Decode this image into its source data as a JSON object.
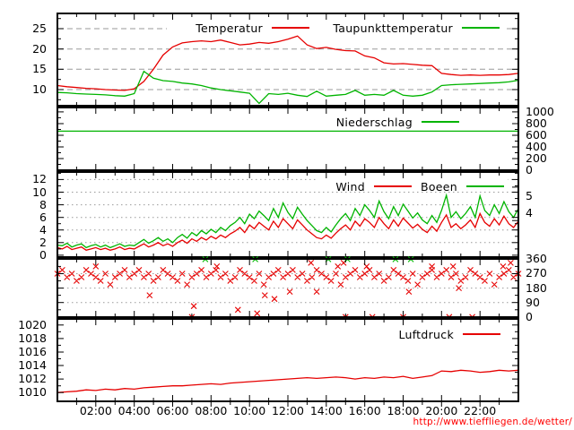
{
  "footer": {
    "url": "http://www.tieffliegen.de/wetter/"
  },
  "colors": {
    "red": "#e60000",
    "green": "#00b400",
    "url_red": "#ff0000",
    "grid": "#9a9a9a",
    "axis": "#000000"
  },
  "x_axis": {
    "labels": [
      "02:00",
      "04:00",
      "06:00",
      "08:00",
      "10:00",
      "12:00",
      "14:00",
      "16:00",
      "18:00",
      "20:00",
      "22:00"
    ],
    "label_hours": [
      2,
      4,
      6,
      8,
      10,
      12,
      14,
      16,
      18,
      20,
      22
    ],
    "range_hours": [
      0,
      24
    ]
  },
  "legends": {
    "temperature": [
      {
        "label": "Temperatur",
        "color": "#e60000"
      },
      {
        "label": "Taupunkttemperatur",
        "color": "#00b400"
      }
    ],
    "precipitation": [
      {
        "label": "Niederschlag",
        "color": "#00b400"
      }
    ],
    "wind": [
      {
        "label": "Wind",
        "color": "#e60000"
      },
      {
        "label": "Boeen",
        "color": "#00b400"
      }
    ],
    "pressure": [
      {
        "label": "Luftdruck",
        "color": "#e60000"
      }
    ]
  },
  "chart_data": [
    {
      "id": "temperature",
      "type": "line",
      "xlim": [
        0,
        24
      ],
      "ylim": [
        6.0,
        28.75
      ],
      "x_start": 0,
      "x_step_hours": 0.5,
      "grid": "dashed",
      "yticks": [
        {
          "side": "left",
          "values": [
            25,
            20,
            15,
            10
          ],
          "labels": [
            "25",
            "20",
            "15",
            "10"
          ]
        }
      ],
      "series": [
        {
          "name": "Temperatur",
          "color": "#e60000",
          "values": [
            11.0,
            10.7,
            10.5,
            10.3,
            10.2,
            10.0,
            9.9,
            9.8,
            10.2,
            12.0,
            15.0,
            18.5,
            20.5,
            21.5,
            21.8,
            22.0,
            21.8,
            22.2,
            21.6,
            21.0,
            21.2,
            21.6,
            21.4,
            21.8,
            22.4,
            23.2,
            21.0,
            20.1,
            20.4,
            19.9,
            19.6,
            19.5,
            18.3,
            17.8,
            16.6,
            16.3,
            16.4,
            16.2,
            16.0,
            15.9,
            14.0,
            13.7,
            13.5,
            13.6,
            13.5,
            13.6,
            13.6,
            13.7,
            14.0
          ]
        },
        {
          "name": "Taupunkttemperatur",
          "color": "#00b400",
          "values": [
            9.3,
            9.2,
            9.0,
            8.9,
            8.8,
            8.7,
            8.5,
            8.4,
            9.0,
            14.5,
            12.8,
            12.2,
            12.0,
            11.6,
            11.4,
            11.0,
            10.4,
            10.0,
            9.7,
            9.4,
            9.1,
            6.6,
            9.0,
            8.8,
            9.1,
            8.6,
            8.3,
            9.6,
            8.4,
            8.6,
            8.8,
            9.8,
            8.6,
            8.8,
            8.6,
            9.8,
            8.6,
            8.4,
            8.6,
            9.4,
            11.0,
            11.2,
            11.3,
            11.4,
            11.5,
            11.6,
            11.7,
            11.9,
            12.3
          ]
        }
      ]
    },
    {
      "id": "precipitation",
      "type": "line",
      "xlim": [
        0,
        24
      ],
      "ylim": [
        0,
        1076
      ],
      "x": [
        0,
        24
      ],
      "yticks": [
        {
          "side": "right",
          "values": [
            1000,
            800,
            600,
            400,
            200,
            0
          ],
          "labels": [
            "1000",
            "800",
            "600",
            "400",
            "200",
            "0"
          ]
        }
      ],
      "series": [
        {
          "name": "Niederschlag",
          "color": "#00b400",
          "values": [
            670,
            670
          ]
        }
      ]
    },
    {
      "id": "wind",
      "type": "line",
      "xlim": [
        0,
        24
      ],
      "ylim": [
        0,
        13.2
      ],
      "x_start": 0,
      "x_step_hours": 0.25,
      "grid": "dotted",
      "yticks": [
        {
          "side": "left",
          "values": [
            12,
            10,
            8,
            6,
            4,
            2,
            0
          ],
          "labels": [
            "12",
            "10",
            "8",
            "6",
            "4",
            "2",
            "0"
          ]
        },
        {
          "side": "right",
          "values": [
            9.35,
            6.7
          ],
          "labels": [
            "5",
            "4"
          ]
        }
      ],
      "series": [
        {
          "name": "Wind",
          "color": "#e60000",
          "values": [
            1.2,
            1.0,
            1.4,
            0.9,
            1.1,
            1.3,
            0.8,
            1.0,
            1.2,
            0.9,
            1.1,
            0.8,
            1.0,
            1.3,
            0.9,
            1.1,
            1.0,
            1.4,
            1.8,
            1.3,
            1.6,
            2.0,
            1.5,
            1.8,
            1.4,
            2.0,
            2.4,
            1.9,
            2.6,
            2.2,
            2.8,
            2.4,
            3.0,
            2.6,
            3.2,
            2.8,
            3.4,
            3.8,
            4.4,
            3.6,
            4.8,
            4.2,
            5.2,
            4.6,
            4.0,
            5.4,
            4.4,
            5.8,
            5.0,
            4.2,
            5.6,
            4.8,
            4.0,
            3.4,
            2.8,
            2.6,
            3.2,
            2.7,
            3.5,
            4.2,
            4.8,
            4.0,
            5.4,
            4.6,
            5.8,
            5.2,
            4.4,
            6.0,
            5.0,
            4.2,
            5.6,
            4.6,
            5.9,
            5.1,
            4.3,
            4.9,
            4.1,
            3.6,
            4.6,
            3.8,
            5.2,
            6.4,
            4.4,
            5.0,
            4.2,
            4.8,
            5.6,
            4.4,
            6.6,
            5.2,
            4.6,
            5.8,
            4.8,
            6.2,
            5.0,
            4.4,
            5.4
          ]
        },
        {
          "name": "Boeen",
          "color": "#00b400",
          "values": [
            1.6,
            1.5,
            1.9,
            1.3,
            1.6,
            1.8,
            1.2,
            1.5,
            1.7,
            1.3,
            1.6,
            1.2,
            1.5,
            1.8,
            1.4,
            1.6,
            1.5,
            2.0,
            2.5,
            1.9,
            2.3,
            2.8,
            2.2,
            2.6,
            2.0,
            2.8,
            3.3,
            2.7,
            3.6,
            3.1,
            3.9,
            3.4,
            4.1,
            3.6,
            4.4,
            3.9,
            4.7,
            5.2,
            6.0,
            5.0,
            6.5,
            5.8,
            7.0,
            6.3,
            5.5,
            7.4,
            6.0,
            8.3,
            6.8,
            5.8,
            7.6,
            6.5,
            5.5,
            4.7,
            3.9,
            3.6,
            4.4,
            3.7,
            4.8,
            5.8,
            6.6,
            5.5,
            7.4,
            6.3,
            8.0,
            7.1,
            6.0,
            8.6,
            6.9,
            5.8,
            7.7,
            6.3,
            8.1,
            7.0,
            5.9,
            6.7,
            5.6,
            5.0,
            6.3,
            5.2,
            7.1,
            9.5,
            6.0,
            6.9,
            5.8,
            6.6,
            7.7,
            6.0,
            9.4,
            7.1,
            6.3,
            8.0,
            6.6,
            8.5,
            6.9,
            6.0,
            7.4
          ]
        }
      ]
    },
    {
      "id": "direction",
      "type": "scatter",
      "marker": "x",
      "marker_color": "#e60000",
      "north_color": "#00b400",
      "xlim": [
        0,
        24
      ],
      "ylim": [
        0,
        360
      ],
      "x_start": 0,
      "x_step_hours": 0.25,
      "grid": "dotted",
      "yticks": [
        {
          "side": "right",
          "values": [
            360,
            270,
            180,
            90,
            0
          ],
          "labels": [
            "360",
            "270",
            "180",
            "90",
            "0"
          ]
        }
      ],
      "values": [
        270,
        292.5,
        247.5,
        270,
        225,
        247.5,
        292.5,
        270,
        247.5,
        225,
        270,
        202.5,
        247.5,
        270,
        292.5,
        247.5,
        270,
        292.5,
        247.5,
        270,
        225,
        247.5,
        292.5,
        270,
        247.5,
        225,
        270,
        202.5,
        247.5,
        270,
        292.5,
        247.5,
        270,
        292.5,
        247.5,
        270,
        225,
        247.5,
        292.5,
        270,
        247.5,
        225,
        270,
        202.5,
        247.5,
        270,
        292.5,
        247.5,
        270,
        292.5,
        247.5,
        270,
        225,
        247.5,
        292.5,
        270,
        247.5,
        225,
        270,
        202.5,
        247.5,
        270,
        292.5,
        247.5,
        270,
        292.5,
        247.5,
        270,
        225,
        247.5,
        292.5,
        270,
        247.5,
        225,
        270,
        202.5,
        247.5,
        270,
        292.5,
        247.5,
        270,
        292.5,
        247.5,
        270,
        225,
        247.5,
        292.5,
        270,
        247.5,
        225,
        270,
        202.5,
        247.5,
        270,
        292.5,
        247.5,
        270
      ],
      "outliers": [
        [
          2.0,
          315
        ],
        [
          4.8,
          135
        ],
        [
          7.1,
          67.5
        ],
        [
          8.3,
          315
        ],
        [
          9.4,
          45
        ],
        [
          10.4,
          22.5
        ],
        [
          10.8,
          135
        ],
        [
          11.3,
          112.5
        ],
        [
          12.1,
          157.5
        ],
        [
          13.2,
          337.5
        ],
        [
          13.5,
          157.5
        ],
        [
          14.6,
          315
        ],
        [
          14.9,
          337.5
        ],
        [
          16.1,
          315
        ],
        [
          18.3,
          157.5
        ],
        [
          19.5,
          315
        ],
        [
          20.6,
          315
        ],
        [
          20.9,
          180
        ],
        [
          23.2,
          315
        ],
        [
          23.6,
          337.5
        ]
      ],
      "north_points": [
        7.7,
        10.3,
        14.1,
        15.1,
        17.6,
        18.4
      ],
      "zero_points": [
        7.0,
        15.0,
        16.4,
        18.0,
        20.4,
        21.6
      ]
    },
    {
      "id": "pressure",
      "type": "line",
      "xlim": [
        0,
        24
      ],
      "ylim": [
        1008.7,
        1020.9
      ],
      "x_start": 0,
      "x_step_hours": 0.5,
      "yticks": [
        {
          "side": "left",
          "values": [
            1020,
            1018,
            1016,
            1014,
            1012,
            1010
          ],
          "labels": [
            "1020",
            "1018",
            "1016",
            "1014",
            "1012",
            "1010"
          ]
        }
      ],
      "series": [
        {
          "name": "Luftdruck",
          "color": "#e60000",
          "values": [
            1010.0,
            1010.1,
            1010.2,
            1010.4,
            1010.3,
            1010.5,
            1010.4,
            1010.6,
            1010.5,
            1010.7,
            1010.8,
            1010.9,
            1011.0,
            1011.0,
            1011.1,
            1011.2,
            1011.3,
            1011.2,
            1011.4,
            1011.5,
            1011.6,
            1011.7,
            1011.8,
            1011.9,
            1012.0,
            1012.1,
            1012.2,
            1012.1,
            1012.2,
            1012.3,
            1012.2,
            1012.0,
            1012.2,
            1012.1,
            1012.3,
            1012.2,
            1012.4,
            1012.1,
            1012.3,
            1012.5,
            1013.2,
            1013.1,
            1013.3,
            1013.2,
            1013.0,
            1013.1,
            1013.3,
            1013.2,
            1013.3
          ]
        }
      ]
    }
  ]
}
